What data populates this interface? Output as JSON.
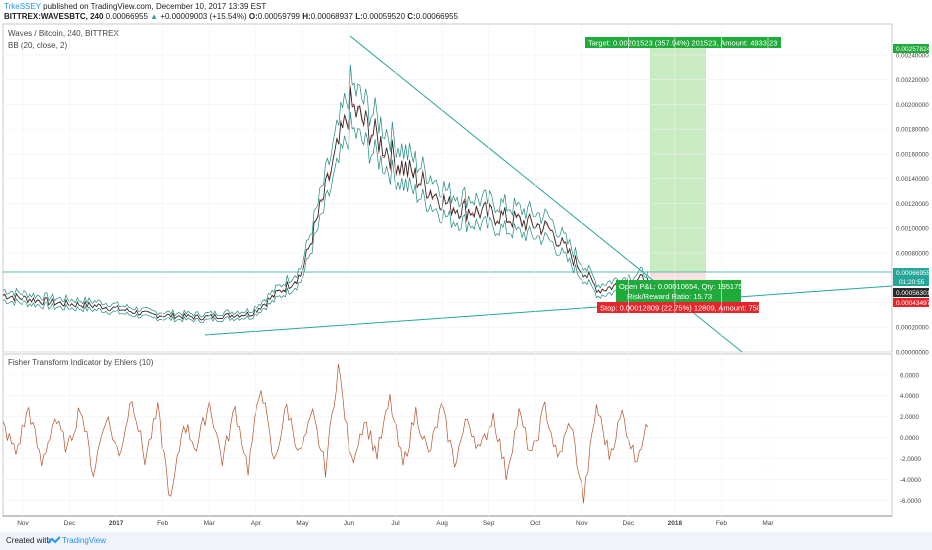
{
  "header": {
    "user": "TrkeSSEY",
    "published": "published on TradingView.com, December 10, 2017 13:39 EST",
    "symbol": "BITTREX:WAVESBTC, 240",
    "last": "0.00066955",
    "change_arrow": "▲",
    "change": "+0.00009003 (+15.54%)",
    "o_label": "O:",
    "o": "0.00059799",
    "h_label": "H:",
    "h": "0.00068937",
    "l_label": "L:",
    "l": "0.00059520",
    "c_label": "C:",
    "c": "0.00066955"
  },
  "pane_main": {
    "title": "Waves / Bitcoin, 240, BITTREX",
    "indicator": "BB (20, close, 2)",
    "target_label": "Target: 0.00201523 (357.94%) 201523, Amount: 4933.23",
    "open_label": "Open P&L: 0.00010654, Qty: 1951752",
    "rr_label": "Risk/Reward Ratio: 15.73",
    "stop_label": "Stop: 0.00012809 (22.75%) 12809, Amount: 750",
    "price_tags": [
      "0.00257824",
      "0.00066955",
      "01:20:55",
      "0.00056301",
      "0.00043497"
    ]
  },
  "pane_fisher": {
    "title": "Fisher Transform Indicator by Ehlers (10)"
  },
  "chart_data": [
    {
      "type": "line",
      "title": "Waves / Bitcoin, 240, BITTREX",
      "x": [
        "Nov",
        "Dec",
        "2017",
        "Feb",
        "Mar",
        "Apr",
        "May",
        "Jun",
        "Jul",
        "Aug",
        "Sep",
        "Oct",
        "Nov",
        "Dec"
      ],
      "series": [
        {
          "name": "WAVESBTC",
          "values": [
            0.00046,
            0.0004,
            0.00037,
            0.0003,
            0.00028,
            0.00031,
            0.00062,
            0.00198,
            0.00152,
            0.00118,
            0.0011,
            0.001,
            0.0005,
            0.0006
          ]
        }
      ],
      "y_ticks": [
        "0.00240000",
        "0.00220000",
        "0.00200000",
        "0.00180000",
        "0.00160000",
        "0.00140000",
        "0.00120000",
        "0.00100000",
        "0.00080000",
        "0.00060000",
        "0.00040000",
        "0.00020000",
        "0.00000000"
      ],
      "ylim": [
        0,
        0.00265
      ],
      "xlabel": "",
      "ylabel": ""
    },
    {
      "type": "line",
      "title": "Fisher Transform Indicator by Ehlers (10)",
      "series": [
        {
          "name": "Fisher",
          "values": [
            1.2,
            -1.5,
            2.8,
            -2.6,
            1.9,
            -1.2,
            3.1,
            -3.4,
            2.2,
            -1.8,
            4.0,
            -2.1,
            2.6,
            -6.2,
            1.5,
            -1.0,
            3.4,
            -2.2,
            2.8,
            -3.0,
            5.2,
            -2.5,
            3.0,
            -1.6,
            2.1,
            -3.0,
            6.9,
            -2.4,
            1.7,
            -1.6,
            3.6,
            -2.8,
            2.5,
            -1.7,
            2.9,
            -2.4,
            1.8,
            -1.3,
            2.2,
            -3.5,
            2.3,
            -1.9,
            3.0,
            -2.2,
            1.6,
            -5.9,
            3.1,
            -1.7,
            2.3,
            -2.0,
            1.0
          ]
        }
      ],
      "y_ticks": [
        "6.0000",
        "4.0000",
        "2.0000",
        "0.0000",
        "-2.0000",
        "-4.0000",
        "-6.0000"
      ],
      "ylim": [
        -7.3,
        7.6
      ],
      "x_ticks": [
        "Nov",
        "Dec",
        "2017",
        "Feb",
        "Mar",
        "Apr",
        "May",
        "Jun",
        "Jul",
        "Aug",
        "Sep",
        "Oct",
        "Nov",
        "Dec",
        "2018",
        "Feb",
        "Mar"
      ]
    }
  ],
  "colors": {
    "price_line": "#2a2a2a",
    "bb_band": "#1f8a80",
    "bb_basis": "#c0392b",
    "trend": "#26a69a",
    "target_zone": "#c9ebc1",
    "label_green": "#1faa3a",
    "label_red": "#e3262b",
    "fisher": "#b5542a",
    "axis_text": "#444444",
    "brand": "#2196f3"
  }
}
